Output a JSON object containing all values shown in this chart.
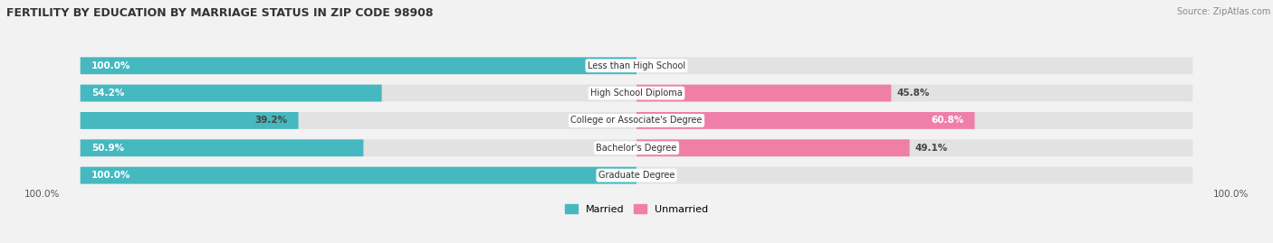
{
  "title": "FERTILITY BY EDUCATION BY MARRIAGE STATUS IN ZIP CODE 98908",
  "source": "Source: ZipAtlas.com",
  "categories": [
    "Less than High School",
    "High School Diploma",
    "College or Associate's Degree",
    "Bachelor's Degree",
    "Graduate Degree"
  ],
  "married": [
    100.0,
    54.2,
    39.2,
    50.9,
    100.0
  ],
  "unmarried": [
    0.0,
    45.8,
    60.8,
    49.1,
    0.0
  ],
  "married_color": "#45B8C0",
  "unmarried_color": "#F07FA8",
  "background_color": "#f2f2f2",
  "bar_bg_color": "#e2e2e2",
  "label_color": "#555555",
  "title_color": "#333333",
  "bar_height": 0.62,
  "figsize": [
    14.06,
    2.69
  ],
  "dpi": 100
}
